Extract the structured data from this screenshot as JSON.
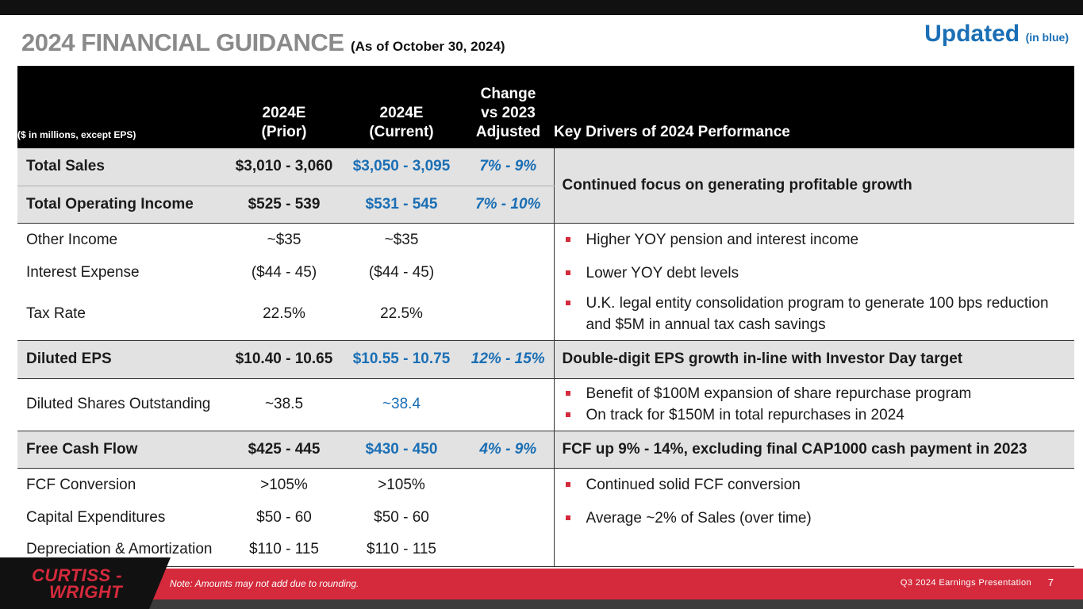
{
  "header": {
    "title": "2024 FINANCIAL GUIDANCE",
    "subtitle": "(As of October 30, 2024)",
    "updated": "Updated",
    "updated_note": "(in blue)"
  },
  "table": {
    "units_note": "($ in millions, except EPS)",
    "col_prior": [
      "2024E",
      "(Prior)"
    ],
    "col_current": [
      "2024E",
      "(Current)"
    ],
    "col_change": [
      "Change",
      "vs 2023",
      "Adjusted"
    ],
    "col_drivers": "Key Drivers of 2024 Performance",
    "rows": {
      "total_sales": {
        "label": "Total Sales",
        "prior": "$3,010 - 3,060",
        "current": "$3,050 - 3,095",
        "change": "7% - 9%"
      },
      "total_operating_income": {
        "label": "Total Operating Income",
        "prior": "$525 - 539",
        "current": "$531 - 545",
        "change": "7% - 10%"
      },
      "other_income": {
        "label": "Other Income",
        "prior": "~$35",
        "current": "~$35"
      },
      "interest_expense": {
        "label": "Interest Expense",
        "prior": "($44 - 45)",
        "current": "($44 - 45)"
      },
      "tax_rate": {
        "label": "Tax Rate",
        "prior": "22.5%",
        "current": "22.5%"
      },
      "diluted_eps": {
        "label": "Diluted EPS",
        "prior": "$10.40 - 10.65",
        "current": "$10.55 - 10.75",
        "change": "12% - 15%"
      },
      "diluted_shares": {
        "label": "Diluted Shares Outstanding",
        "prior": "~38.5",
        "current": "~38.4"
      },
      "free_cash_flow": {
        "label": "Free Cash Flow",
        "prior": "$425 - 445",
        "current": "$430 - 450",
        "change": "4% - 9%"
      },
      "fcf_conversion": {
        "label": "FCF Conversion",
        "prior": ">105%",
        "current": ">105%"
      },
      "capex": {
        "label": "Capital Expenditures",
        "prior": "$50 - 60",
        "current": "$50 - 60"
      },
      "dep_amort": {
        "label": "Depreciation & Amortization",
        "prior": "$110 - 115",
        "current": "$110 - 115"
      }
    },
    "drivers": {
      "sales_oi": "Continued focus on generating profitable growth",
      "other_income": "Higher YOY pension and interest income",
      "interest_expense": "Lower YOY debt levels",
      "tax_rate": "U.K. legal entity consolidation program to generate 100 bps reduction and $5M in annual tax cash savings",
      "eps": "Double-digit EPS growth in-line with Investor Day target",
      "shares_1": "Benefit of $100M expansion of share repurchase program",
      "shares_2": "On track for $150M in total repurchases in 2024",
      "fcf": "FCF up 9% - 14%, excluding final CAP1000 cash payment in 2023",
      "fcf_conversion": "Continued solid FCF conversion",
      "capex": "Average ~2% of Sales (over time)"
    }
  },
  "footer": {
    "logo_line1": "CURTISS -",
    "logo_line2": "WRIGHT",
    "note": "Note: Amounts may not add due to rounding.",
    "presentation": "Q3 2024 Earnings Presentation",
    "page_number": "7"
  },
  "colors": {
    "accent_red": "#d42a3c",
    "update_blue": "#1a6fb5",
    "title_grey": "#8a8a8a"
  }
}
